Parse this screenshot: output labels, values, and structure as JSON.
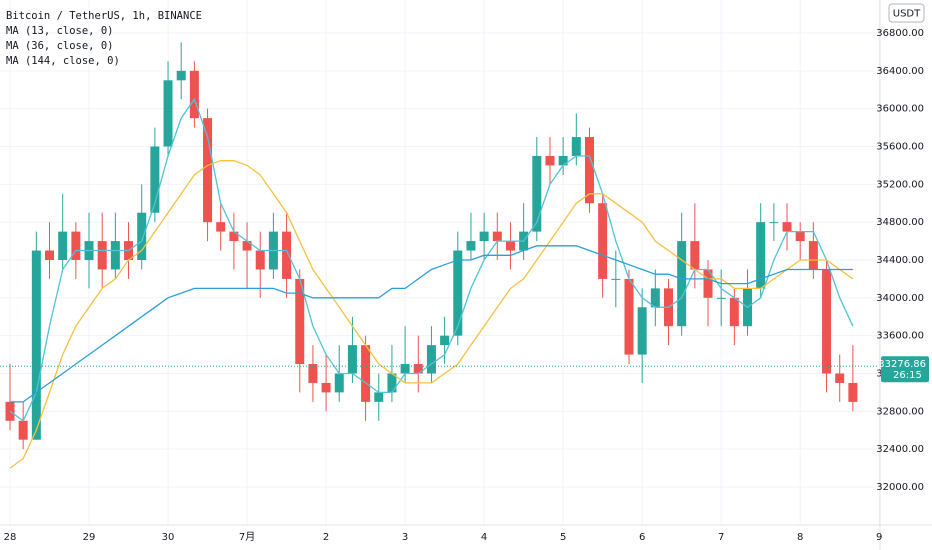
{
  "chart_data": {
    "type": "candlestick",
    "title": "Bitcoin / TetherUS, 1h, BINANCE",
    "currency": "USDT",
    "countdown": "26:15",
    "last_price": 33276.86,
    "up_color": "#26a69a",
    "down_color": "#ef5350",
    "grid": true,
    "categories": [
      "28",
      null,
      null,
      null,
      null,
      null,
      "29",
      null,
      null,
      null,
      null,
      null,
      "30",
      null,
      null,
      null,
      null,
      null,
      "7月",
      null,
      null,
      null,
      null,
      null,
      "2",
      null,
      null,
      null,
      null,
      null,
      "3",
      null,
      null,
      null,
      null,
      null,
      "4",
      null,
      null,
      null,
      null,
      null,
      "5",
      null,
      null,
      null,
      null,
      null,
      "6",
      null,
      null,
      null,
      null,
      null,
      "7",
      null,
      null,
      null,
      null,
      null,
      "8",
      null,
      null,
      null,
      null,
      null,
      "9"
    ],
    "open": [
      32900,
      32700,
      32500,
      34500,
      34400,
      34700,
      34400,
      34600,
      34300,
      34600,
      34400,
      34900,
      35600,
      36300,
      36400,
      35900,
      34800,
      34700,
      34600,
      34500,
      34300,
      34700,
      34200,
      33300,
      33100,
      33000,
      33200,
      33500,
      32900,
      33000,
      33200,
      33300,
      33200,
      33500,
      33600,
      34500,
      34600,
      34700,
      34600,
      34500,
      34700,
      35500,
      35400,
      35500,
      35700,
      35000,
      34200,
      34200,
      33400,
      33900,
      34100,
      33700,
      34600,
      34300,
      34000,
      34000,
      33700,
      34100,
      34800,
      34800,
      34700,
      34600,
      34300,
      33200,
      33100,
      null,
      null
    ],
    "high": [
      33300,
      32900,
      34700,
      34800,
      35100,
      34800,
      34900,
      34900,
      34900,
      34800,
      35200,
      35800,
      36500,
      36700,
      36500,
      36000,
      35000,
      34900,
      34800,
      34700,
      34900,
      34900,
      34300,
      33500,
      33400,
      33500,
      33800,
      33600,
      33200,
      33500,
      33700,
      33600,
      33700,
      33800,
      34700,
      34900,
      34900,
      34900,
      34800,
      35000,
      35700,
      35700,
      35700,
      35950,
      35800,
      35100,
      34500,
      34300,
      34100,
      34300,
      34200,
      34900,
      35000,
      34400,
      34300,
      34100,
      34300,
      35000,
      35000,
      35000,
      34800,
      34800,
      34400,
      33400,
      33500,
      null,
      null
    ],
    "low": [
      32600,
      32400,
      32500,
      34200,
      34300,
      34200,
      34100,
      34100,
      34200,
      34200,
      34300,
      34800,
      35500,
      36100,
      35800,
      34600,
      34500,
      34300,
      34100,
      34000,
      34200,
      34000,
      33000,
      32900,
      32800,
      32900,
      33100,
      32700,
      32700,
      32900,
      33100,
      33000,
      33100,
      33300,
      33500,
      34400,
      34400,
      34400,
      34300,
      34400,
      34600,
      35200,
      35300,
      35400,
      34900,
      34000,
      33900,
      33300,
      33100,
      33700,
      33500,
      33600,
      34100,
      33700,
      33700,
      33500,
      33600,
      34000,
      34600,
      34500,
      34400,
      34200,
      33000,
      32900,
      32800,
      null,
      null
    ],
    "close": [
      32700,
      32500,
      34500,
      34400,
      34700,
      34400,
      34600,
      34300,
      34600,
      34400,
      34900,
      35600,
      36300,
      36400,
      35900,
      34800,
      34700,
      34600,
      34500,
      34300,
      34700,
      34200,
      33300,
      33100,
      33000,
      33200,
      33500,
      32900,
      33000,
      33200,
      33300,
      33200,
      33500,
      33600,
      34500,
      34600,
      34700,
      34600,
      34500,
      34700,
      35500,
      35400,
      35500,
      35700,
      35000,
      34200,
      34200,
      33400,
      33900,
      34100,
      33700,
      34600,
      34300,
      34000,
      34000,
      33700,
      34100,
      34800,
      34800,
      34700,
      34600,
      34300,
      33200,
      33100,
      32900,
      null,
      null
    ],
    "series": [
      {
        "name": "MA (13, close, 0)",
        "color": "#4fc3d9",
        "values": [
          32800,
          32700,
          33000,
          33700,
          34300,
          34500,
          34500,
          34500,
          34500,
          34500,
          34600,
          35000,
          35500,
          35900,
          36100,
          35700,
          35000,
          34700,
          34600,
          34500,
          34500,
          34500,
          34200,
          33700,
          33400,
          33200,
          33200,
          33100,
          33000,
          33000,
          33200,
          33200,
          33300,
          33400,
          33700,
          34100,
          34400,
          34600,
          34600,
          34600,
          34800,
          35200,
          35400,
          35500,
          35500,
          35100,
          34600,
          34200,
          34000,
          33900,
          33900,
          34000,
          34300,
          34300,
          34100,
          34000,
          33900,
          34000,
          34400,
          34700,
          34700,
          34700,
          34400,
          34000,
          33700,
          null,
          null
        ]
      },
      {
        "name": "MA (36, close, 0)",
        "color": "#f7c03e",
        "values": [
          32200,
          32300,
          32600,
          33000,
          33400,
          33700,
          33900,
          34100,
          34200,
          34400,
          34500,
          34700,
          34900,
          35100,
          35300,
          35400,
          35450,
          35450,
          35400,
          35300,
          35100,
          34900,
          34600,
          34300,
          34100,
          33900,
          33700,
          33500,
          33300,
          33200,
          33100,
          33100,
          33100,
          33200,
          33300,
          33500,
          33700,
          33900,
          34100,
          34200,
          34400,
          34600,
          34800,
          35000,
          35100,
          35100,
          35000,
          34900,
          34800,
          34600,
          34500,
          34400,
          34300,
          34200,
          34200,
          34100,
          34100,
          34100,
          34200,
          34300,
          34400,
          34400,
          34400,
          34300,
          34200,
          null,
          null
        ]
      },
      {
        "name": "MA (144, close, 0)",
        "color": "#2a9fd8",
        "values": [
          32900,
          32900,
          33000,
          33100,
          33200,
          33300,
          33400,
          33500,
          33600,
          33700,
          33800,
          33900,
          34000,
          34050,
          34100,
          34100,
          34100,
          34100,
          34100,
          34100,
          34100,
          34050,
          34050,
          34000,
          34000,
          34000,
          34000,
          34000,
          34000,
          34100,
          34100,
          34200,
          34300,
          34350,
          34400,
          34400,
          34450,
          34450,
          34450,
          34500,
          34550,
          34550,
          34550,
          34550,
          34500,
          34450,
          34400,
          34350,
          34300,
          34250,
          34250,
          34200,
          34200,
          34200,
          34150,
          34150,
          34150,
          34200,
          34250,
          34300,
          34300,
          34300,
          34300,
          34300,
          34300,
          null,
          null
        ]
      }
    ],
    "ylim": [
      31598,
      37149
    ],
    "yticks": [
      {
        "value": 32000,
        "label": "32000.00"
      },
      {
        "value": 32400,
        "label": "32400.00"
      },
      {
        "value": 32800,
        "label": "32800.00"
      },
      {
        "value": 33200,
        "label": "33200.00"
      },
      {
        "value": 33600,
        "label": "33600.00"
      },
      {
        "value": 34000,
        "label": "34000.00"
      },
      {
        "value": 34400,
        "label": "34400.00"
      },
      {
        "value": 34800,
        "label": "34800.00"
      },
      {
        "value": 35200,
        "label": "35200.00"
      },
      {
        "value": 35600,
        "label": "35600.00"
      },
      {
        "value": 36000,
        "label": "36000.00"
      },
      {
        "value": 36400,
        "label": "36400.00"
      },
      {
        "value": 36800,
        "label": "36800.00"
      }
    ]
  }
}
